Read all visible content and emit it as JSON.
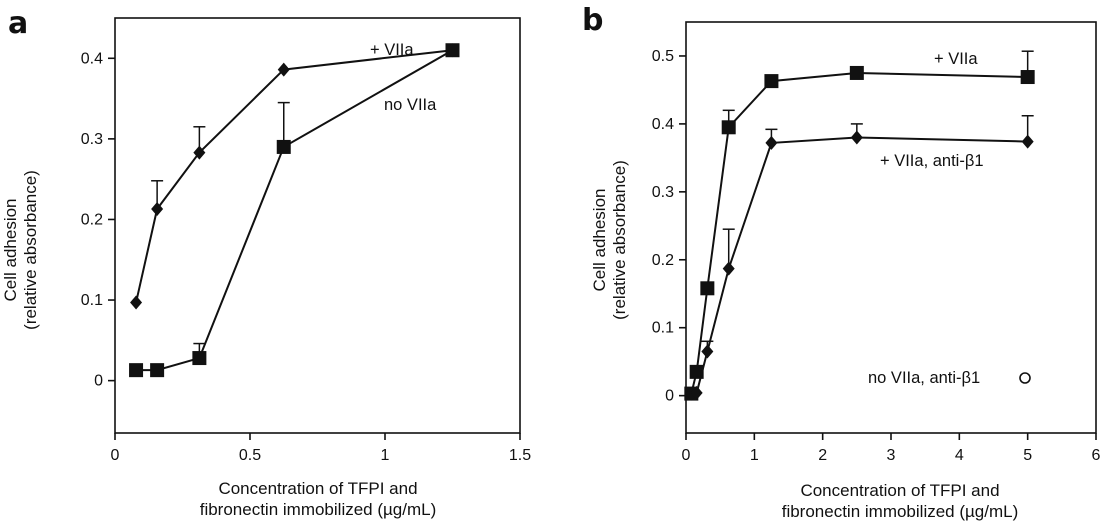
{
  "chart_data": [
    {
      "type": "line",
      "panel": "a",
      "xlabel": [
        "Concentration of TFPI and",
        "fibronectin immobilized (µg/mL)"
      ],
      "ylabel": [
        "Cell adhesion",
        "(relative absorbance)"
      ],
      "xlim": [
        0,
        1.5
      ],
      "ylim": [
        -0.065,
        0.45
      ],
      "xticks": [
        0,
        0.5,
        1,
        1.5
      ],
      "xtick_labels": [
        "0",
        "0.5",
        "1",
        "1.5"
      ],
      "yticks": [
        0,
        0.1,
        0.2,
        0.3,
        0.4
      ],
      "ytick_labels": [
        "0",
        "0.1",
        "0.2",
        "0.3",
        "0.4"
      ],
      "series": [
        {
          "name": "+ VIIa",
          "marker": "diamond",
          "x": [
            0.078,
            0.156,
            0.3125,
            0.625,
            1.25
          ],
          "y": [
            0.097,
            0.213,
            0.283,
            0.386,
            0.41
          ],
          "err": [
            0,
            0.035,
            0.032,
            0,
            0
          ]
        },
        {
          "name": "no VIIa",
          "marker": "square",
          "x": [
            0.078,
            0.156,
            0.3125,
            0.625,
            1.25
          ],
          "y": [
            0.013,
            0.013,
            0.028,
            0.29,
            0.41
          ],
          "err": [
            0,
            0,
            0.018,
            0.055,
            0
          ]
        }
      ]
    },
    {
      "type": "line",
      "panel": "b",
      "xlabel": [
        "Concentration of TFPI and",
        "fibronectin immobilized (µg/mL)"
      ],
      "ylabel": [
        "Cell adhesion",
        "(relative absorbance)"
      ],
      "xlim": [
        0,
        6
      ],
      "ylim": [
        -0.055,
        0.55
      ],
      "xticks": [
        0,
        1,
        2,
        3,
        4,
        5,
        6
      ],
      "xtick_labels": [
        "0",
        "1",
        "2",
        "3",
        "4",
        "5",
        "6"
      ],
      "yticks": [
        0,
        0.1,
        0.2,
        0.3,
        0.4,
        0.5
      ],
      "ytick_labels": [
        "0",
        "0.1",
        "0.2",
        "0.3",
        "0.4",
        "0.5"
      ],
      "series": [
        {
          "name": "+ VIIa",
          "marker": "square",
          "x": [
            0.078,
            0.156,
            0.3125,
            0.625,
            1.25,
            2.5,
            5
          ],
          "y": [
            0.003,
            0.035,
            0.158,
            0.395,
            0.463,
            0.475,
            0.469
          ],
          "err": [
            0,
            0,
            0,
            0.025,
            0,
            0,
            0.038
          ]
        },
        {
          "name": "+ VIIa, anti-β1",
          "marker": "diamond",
          "x": [
            0.078,
            0.156,
            0.3125,
            0.625,
            1.25,
            2.5,
            5
          ],
          "y": [
            0.003,
            0.004,
            0.065,
            0.187,
            0.372,
            0.38,
            0.374
          ],
          "err": [
            0,
            0,
            0.015,
            0.058,
            0.02,
            0.02,
            0.038
          ]
        },
        {
          "name": "no VIIa, anti-β1",
          "marker": "open-circle",
          "x": [],
          "y": [],
          "err": []
        }
      ]
    }
  ]
}
